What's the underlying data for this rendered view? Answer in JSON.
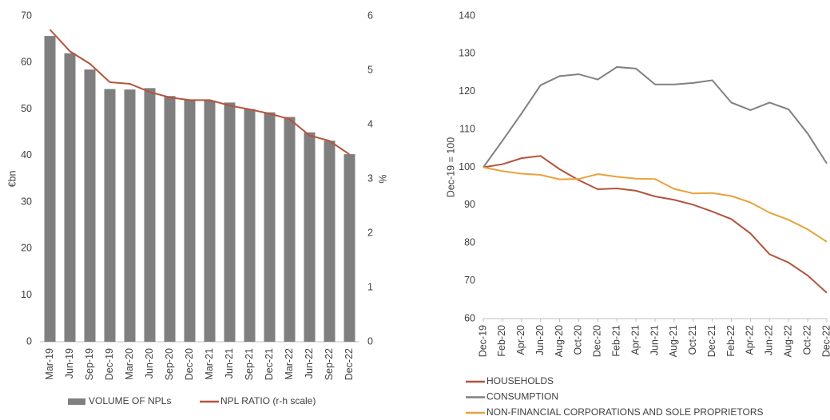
{
  "chart_data": [
    {
      "type": "bar",
      "y_label": "€bn",
      "y2_label": "%",
      "categories": [
        "Mar-19",
        "Jun-19",
        "Sep-19",
        "Dec-19",
        "Mar-20",
        "Jun-20",
        "Sep-20",
        "Dec-20",
        "Mar-21",
        "Jun-21",
        "Sep-21",
        "Dec-21",
        "Mar-22",
        "Jun-22",
        "Sep-22",
        "Dec-22"
      ],
      "series": [
        {
          "name": "VOLUME OF NPLs",
          "type": "bar",
          "color": "#7f7f7f",
          "values": [
            65.7,
            62,
            58.5,
            54.3,
            54.2,
            54.5,
            52.8,
            52,
            51.8,
            51.4,
            50,
            49.3,
            48.3,
            45,
            43.2,
            40.3
          ]
        },
        {
          "name": "NPL RATIO (r-h scale)",
          "type": "line",
          "axis": "y2",
          "color": "#b5533c",
          "values": [
            5.75,
            5.35,
            5.12,
            4.78,
            4.75,
            4.6,
            4.5,
            4.45,
            4.45,
            4.35,
            4.28,
            4.2,
            4.1,
            3.8,
            3.7,
            3.45
          ]
        }
      ],
      "ylim": [
        0,
        70
      ],
      "yticks": [
        0,
        10,
        20,
        30,
        40,
        50,
        60,
        70
      ],
      "y2lim": [
        0,
        6
      ],
      "y2ticks": [
        0,
        1,
        2,
        3,
        4,
        5,
        6
      ]
    },
    {
      "type": "line",
      "y_label": "Dec-19 = 100",
      "categories": [
        "Dec-19",
        "Feb-20",
        "Apr-20",
        "Jun-20",
        "Aug-20",
        "Oct-20",
        "Dec-20",
        "Feb-21",
        "Apr-21",
        "Jun-21",
        "Aug-21",
        "Oct-21",
        "Dec-21",
        "Feb-22",
        "Apr-22",
        "Jun-22",
        "Aug-22",
        "Oct-22",
        "Dec-22"
      ],
      "series": [
        {
          "name": "HOUSEHOLDS",
          "color": "#b5533c",
          "values": [
            100,
            100.8,
            102.4,
            103,
            99.5,
            96.6,
            94.2,
            94.4,
            93.8,
            92.3,
            91.4,
            90.1,
            88.3,
            86.3,
            82.5,
            77,
            74.8,
            71.4,
            66.8
          ]
        },
        {
          "name": "CONSUMPTION",
          "color": "#808080",
          "values": [
            100,
            107,
            114.2,
            121.7,
            124.1,
            124.6,
            123.2,
            126.5,
            126.1,
            121.9,
            121.9,
            122.3,
            123,
            117.1,
            115.1,
            117.1,
            115.3,
            108.9,
            101
          ]
        },
        {
          "name": "NON-FINANCIAL CORPORATIONS AND SOLE PROPRIETORS",
          "color": "#e8a23a",
          "values": [
            100,
            99,
            98.3,
            98,
            96.8,
            96.9,
            98.2,
            97.5,
            97,
            96.9,
            94.3,
            93.1,
            93.2,
            92.4,
            90.7,
            88,
            86.1,
            83.6,
            80.3
          ]
        }
      ],
      "ylim": [
        60,
        140
      ],
      "yticks": [
        60,
        70,
        80,
        90,
        100,
        110,
        120,
        130,
        140
      ]
    }
  ]
}
